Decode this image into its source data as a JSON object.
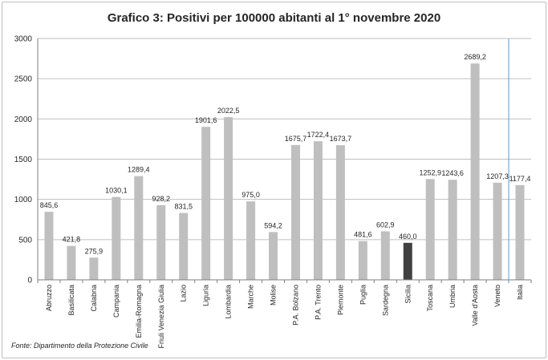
{
  "chart_data": {
    "type": "bar",
    "title": "Grafico 3: Positivi per 100000 abitanti al 1° novembre 2020",
    "source": "Fonte: Dipartimento della Protezione Civile",
    "xlabel": "",
    "ylabel": "",
    "ylim": [
      0,
      3000
    ],
    "yticks": [
      0,
      500,
      1000,
      1500,
      2000,
      2500,
      3000
    ],
    "grid": true,
    "legend": "none",
    "colors": {
      "bar": "#bfbfbf",
      "highlight": "#404040",
      "divider": "#5b9bd5",
      "grid": "#bfbfbf"
    },
    "highlight_category": "Sicilia",
    "divider_before": "Italia",
    "categories": [
      "Abruzzo",
      "Basilicata",
      "Calabria",
      "Campania",
      "Emilia-Romagna",
      "Friuli Venezia Giulia",
      "Lazio",
      "Liguria",
      "Lombardia",
      "Marche",
      "Molise",
      "P.A. Bolzano",
      "P.A. Trento",
      "Piemonte",
      "Puglia",
      "Sardegna",
      "Sicilia",
      "Toscana",
      "Umbria",
      "Valle d'Aosta",
      "Veneto",
      "Italia"
    ],
    "values": [
      845.6,
      421.8,
      275.9,
      1030.1,
      1289.4,
      928.2,
      831.5,
      1901.6,
      2022.5,
      975.0,
      594.2,
      1675.7,
      1722.4,
      1673.7,
      481.6,
      602.9,
      460.0,
      1252.9,
      1243.6,
      2689.2,
      1207.3,
      1177.4
    ],
    "value_labels": [
      "845,6",
      "421,8",
      "275,9",
      "1030,1",
      "1289,4",
      "928,2",
      "831,5",
      "1901,6",
      "2022,5",
      "975,0",
      "594,2",
      "1675,7",
      "1722,4",
      "1673,7",
      "481,6",
      "602,9",
      "460,0",
      "1252,9",
      "1243,6",
      "2689,2",
      "1207,3",
      "1177,4"
    ]
  }
}
